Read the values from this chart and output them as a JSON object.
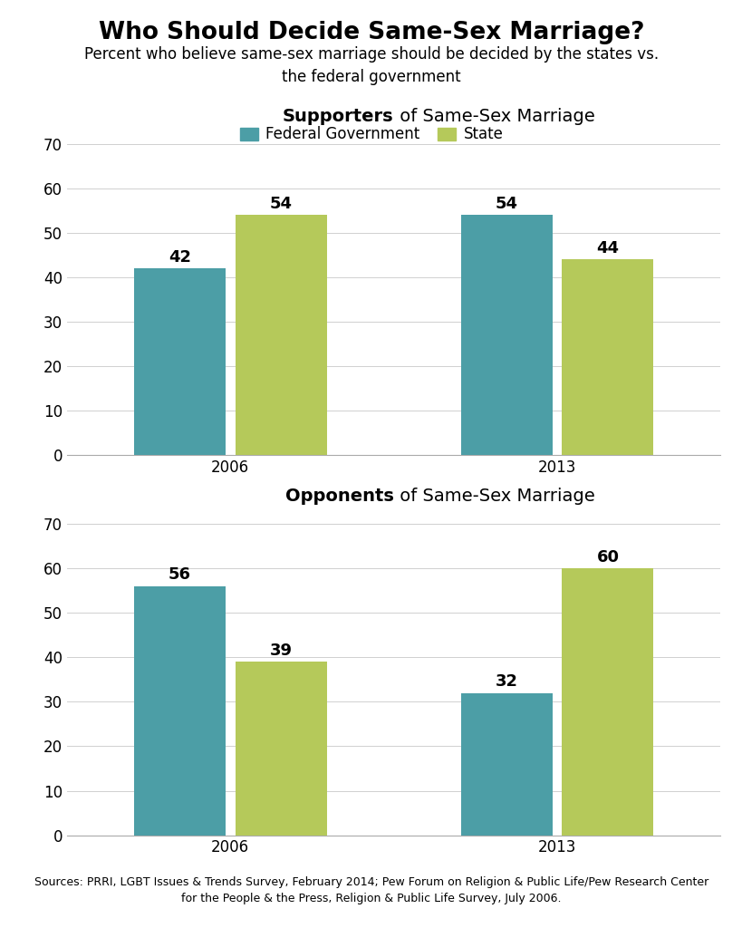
{
  "title": "Who Should Decide Same-Sex Marriage?",
  "subtitle": "Percent who believe same-sex marriage should be decided by the states vs.\nthe federal government",
  "legend_labels": [
    "Federal Government",
    "State"
  ],
  "federal_color": "#4C9EA6",
  "state_color": "#B5C95A",
  "supporters_title_bold": "Supporters",
  "supporters_title_rest": " of Same-Sex Marriage",
  "opponents_title_bold": "Opponents",
  "opponents_title_rest": " of Same-Sex Marriage",
  "supporters": {
    "years": [
      "2006",
      "2013"
    ],
    "federal": [
      42,
      54
    ],
    "state": [
      54,
      44
    ]
  },
  "opponents": {
    "years": [
      "2006",
      "2013"
    ],
    "federal": [
      56,
      32
    ],
    "state": [
      39,
      60
    ]
  },
  "ylim": [
    0,
    70
  ],
  "yticks": [
    0,
    10,
    20,
    30,
    40,
    50,
    60,
    70
  ],
  "source_text": "Sources: PRRI, LGBT Issues & Trends Survey, February 2014; Pew Forum on Religion & Public Life/Pew Research Center\nfor the People & the Press, Religion & Public Life Survey, July 2006.",
  "background_color": "#FFFFFF",
  "bar_width": 0.28,
  "title_fontsize": 19,
  "subtitle_fontsize": 12,
  "legend_fontsize": 12,
  "axis_title_fontsize": 14,
  "bar_label_fontsize": 13,
  "tick_fontsize": 12,
  "source_fontsize": 9
}
